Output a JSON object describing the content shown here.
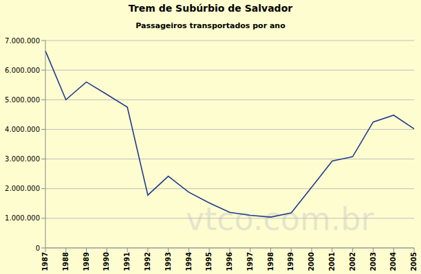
{
  "chart_data": {
    "type": "line",
    "title": "Trem de Subúrbio de Salvador",
    "subtitle": "Passageiros transportados por ano",
    "categories": [
      "1987",
      "1988",
      "1989",
      "1990",
      "1991",
      "1992",
      "1993",
      "1994",
      "1995",
      "1996",
      "1997",
      "1998",
      "1999",
      "2000",
      "2001",
      "2002",
      "2003",
      "2004",
      "2005"
    ],
    "values": [
      6650000,
      5000000,
      5600000,
      5180000,
      4750000,
      1780000,
      2420000,
      1880000,
      1520000,
      1200000,
      1100000,
      1040000,
      1180000,
      2050000,
      2930000,
      3080000,
      4250000,
      4480000,
      4020000
    ],
    "color": "#1f3a8f",
    "ylim": [
      0,
      7000000
    ],
    "yticks": [
      0,
      {
        "value": 1000000,
        "label": "1.000.000"
      },
      {
        "value": 2000000,
        "label": "2.000.000"
      },
      {
        "value": 3000000,
        "label": "3.000.000"
      },
      {
        "value": 4000000,
        "label": "4.000.000"
      },
      {
        "value": 5000000,
        "label": "5.000.000"
      },
      {
        "value": 6000000,
        "label": "6.000.000"
      },
      {
        "value": 7000000,
        "label": "7.000.000"
      }
    ],
    "grid": true,
    "annotations": [
      "vtco.com.br"
    ]
  }
}
